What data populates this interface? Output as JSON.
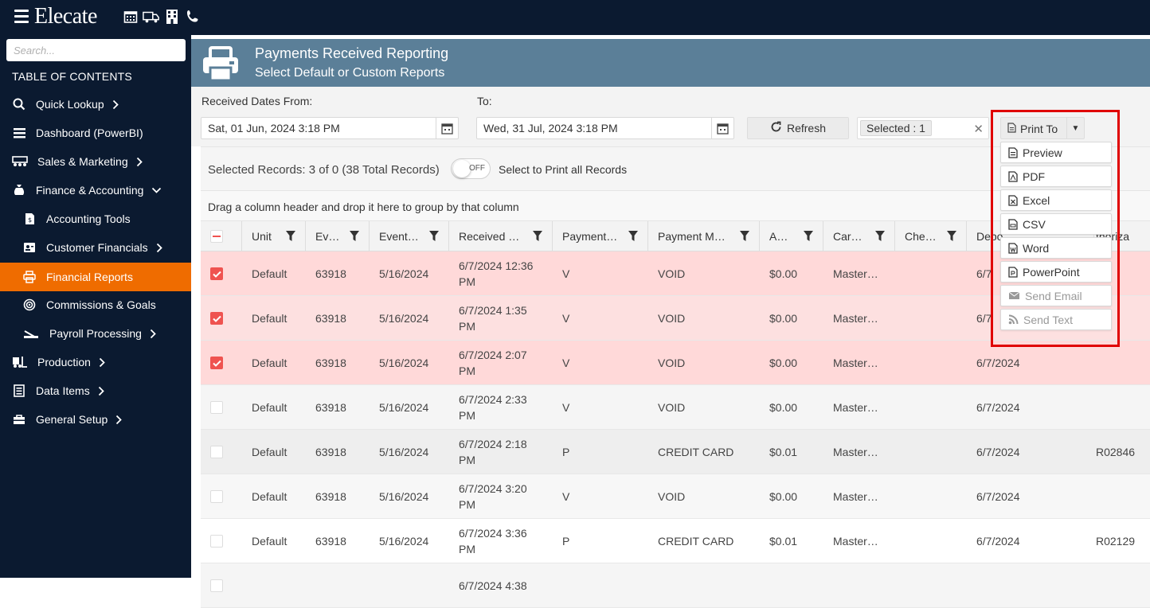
{
  "topbar": {
    "logo": "Elecate",
    "icons": [
      "calendar-icon",
      "truck-icon",
      "building-icon",
      "phone-icon"
    ]
  },
  "sidebar": {
    "search_placeholder": "Search...",
    "toc_title": "TABLE OF CONTENTS",
    "items": [
      {
        "label": "Quick Lookup",
        "icon": "search-icon",
        "chevron": "right"
      },
      {
        "label": "Dashboard (PowerBI)",
        "icon": "menu-icon",
        "chevron": ""
      },
      {
        "label": "Sales & Marketing",
        "icon": "people-icon",
        "chevron": "right"
      },
      {
        "label": "Finance & Accounting",
        "icon": "money-bag-icon",
        "chevron": "down"
      },
      {
        "label": "Accounting Tools",
        "icon": "document-dollar-icon",
        "chevron": ""
      },
      {
        "label": "Customer Financials",
        "icon": "contact-card-icon",
        "chevron": "right"
      },
      {
        "label": "Financial Reports",
        "icon": "printer-icon",
        "chevron": ""
      },
      {
        "label": "Commissions & Goals",
        "icon": "target-icon",
        "chevron": ""
      },
      {
        "label": "Payroll Processing",
        "icon": "check-pen-icon",
        "chevron": "right"
      },
      {
        "label": "Production",
        "icon": "forklift-icon",
        "chevron": "right"
      },
      {
        "label": "Data Items",
        "icon": "list-box-icon",
        "chevron": "right"
      },
      {
        "label": "General Setup",
        "icon": "toolbox-icon",
        "chevron": "right"
      }
    ]
  },
  "header": {
    "title": "Payments Received Reporting",
    "subtitle": "Select Default or Custom Reports"
  },
  "filters": {
    "from_label": "Received Dates From:",
    "from_value": "Sat, 01 Jun, 2024 3:18 PM",
    "to_label": "To:",
    "to_value": "Wed, 31 Jul, 2024 3:18 PM",
    "refresh_label": "Refresh",
    "selected_tag": "Selected : 1",
    "print_label": "Print To"
  },
  "grid": {
    "selected_text": "Selected Records: 3 of 0 (38 Total Records)",
    "toggle_label": "OFF",
    "toggle_text": "Select to Print all Records",
    "group_hint": "Drag a column header and drop it here to group by that column",
    "columns": [
      "",
      "Unit",
      "Ev…",
      "Event…",
      "Received …",
      "Payment…",
      "Payment M…",
      "A…",
      "Car…",
      "Che…",
      "Depo",
      "thoriza"
    ],
    "rows": [
      {
        "checked": true,
        "unit": "Default",
        "ev": "63918",
        "event": "5/16/2024",
        "received": "6/7/2024 12:36 PM",
        "payment": "V",
        "method": "VOID",
        "amount": "$0.00",
        "card": "Master…",
        "check": "",
        "deposit": "6/7",
        "auth": ""
      },
      {
        "checked": true,
        "unit": "Default",
        "ev": "63918",
        "event": "5/16/2024",
        "received": "6/7/2024 1:35 PM",
        "payment": "V",
        "method": "VOID",
        "amount": "$0.00",
        "card": "Master…",
        "check": "",
        "deposit": "6/7",
        "auth": ""
      },
      {
        "checked": true,
        "unit": "Default",
        "ev": "63918",
        "event": "5/16/2024",
        "received": "6/7/2024 2:07 PM",
        "payment": "V",
        "method": "VOID",
        "amount": "$0.00",
        "card": "Master…",
        "check": "",
        "deposit": "6/7/2024",
        "auth": ""
      },
      {
        "checked": false,
        "unit": "Default",
        "ev": "63918",
        "event": "5/16/2024",
        "received": "6/7/2024 2:33 PM",
        "payment": "V",
        "method": "VOID",
        "amount": "$0.00",
        "card": "Master…",
        "check": "",
        "deposit": "6/7/2024",
        "auth": ""
      },
      {
        "checked": false,
        "unit": "Default",
        "ev": "63918",
        "event": "5/16/2024",
        "received": "6/7/2024 2:18 PM",
        "payment": "P",
        "method": "CREDIT CARD",
        "amount": "$0.01",
        "card": "Master…",
        "check": "",
        "deposit": "6/7/2024",
        "auth": "R02846"
      },
      {
        "checked": false,
        "unit": "Default",
        "ev": "63918",
        "event": "5/16/2024",
        "received": "6/7/2024 3:20 PM",
        "payment": "V",
        "method": "VOID",
        "amount": "$0.00",
        "card": "Master…",
        "check": "",
        "deposit": "6/7/2024",
        "auth": ""
      },
      {
        "checked": false,
        "unit": "Default",
        "ev": "63918",
        "event": "5/16/2024",
        "received": "6/7/2024 3:36 PM",
        "payment": "P",
        "method": "CREDIT CARD",
        "amount": "$0.01",
        "card": "Master…",
        "check": "",
        "deposit": "6/7/2024",
        "auth": "R02129"
      },
      {
        "checked": false,
        "unit": "",
        "ev": "",
        "event": "",
        "received": "6/7/2024 4:38",
        "payment": "",
        "method": "",
        "amount": "",
        "card": "",
        "check": "",
        "deposit": "",
        "auth": ""
      }
    ]
  },
  "print_menu": {
    "items": [
      {
        "label": "Preview",
        "icon": "preview-doc-icon",
        "enabled": true
      },
      {
        "label": "PDF",
        "icon": "pdf-icon",
        "enabled": true
      },
      {
        "label": "Excel",
        "icon": "excel-icon",
        "enabled": true
      },
      {
        "label": "CSV",
        "icon": "csv-icon",
        "enabled": true
      },
      {
        "label": "Word",
        "icon": "word-icon",
        "enabled": true
      },
      {
        "label": "PowerPoint",
        "icon": "powerpoint-icon",
        "enabled": true
      },
      {
        "label": "Send Email",
        "icon": "email-icon",
        "enabled": false
      },
      {
        "label": "Send Text",
        "icon": "rss-icon",
        "enabled": false
      }
    ]
  },
  "colors": {
    "sidebar_bg": "#0b1a30",
    "active_item": "#ef6c00",
    "header_bg": "#5b7f98",
    "selected_row": "#ffd9d9",
    "highlight_border": "#e00000"
  }
}
